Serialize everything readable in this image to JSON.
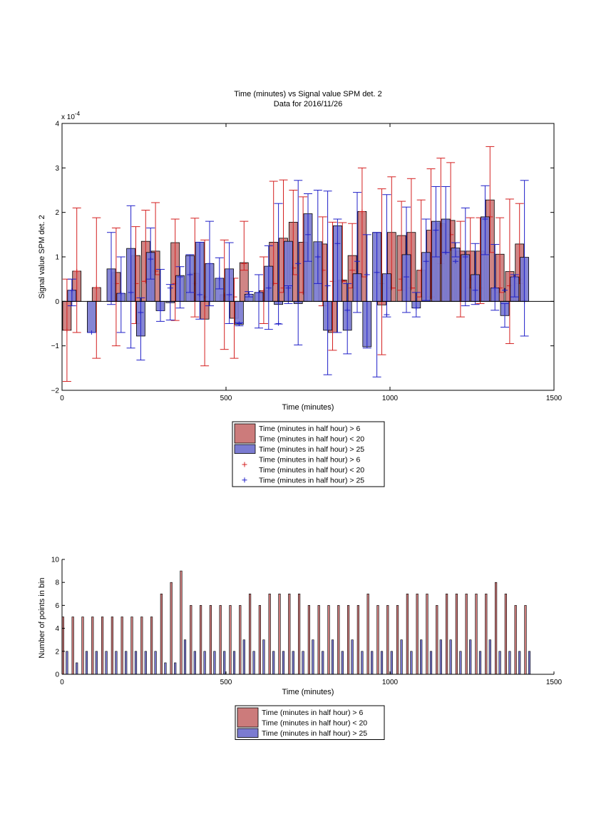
{
  "chart_data": [
    {
      "type": "bar",
      "title": "Time (minutes) vs Signal value SPM det. 2",
      "subtitle": "Data for 2016/11/26",
      "xlabel": "Time (minutes)",
      "ylabel": "Signal value SPM det. 2",
      "exponent_label": "x 10",
      "exponent_power": "-4",
      "xlim": [
        0,
        1500
      ],
      "ylim": [
        -2,
        4
      ],
      "xticks": [
        "0",
        "500",
        "1000",
        "1500"
      ],
      "yticks": [
        "−2",
        "−1",
        "0",
        "1",
        "2",
        "3",
        "4"
      ],
      "legend_placement": "below",
      "legend": [
        {
          "kind": "patch",
          "color": "#cc7b7b",
          "lines": [
            "Time (minutes in half hour) > 6",
            "Time (minutes in half hour) < 20"
          ]
        },
        {
          "kind": "patch",
          "color": "#7b7bd1",
          "lines": [
            "Time (minutes in half hour) > 25"
          ]
        },
        {
          "kind": "marker",
          "color": "#d42020",
          "lines": [
            "Time (minutes in half hour) > 6",
            "Time (minutes in half hour) < 20"
          ]
        },
        {
          "kind": "marker",
          "color": "#2020c8",
          "lines": [
            "Time (minutes in half hour) > 25"
          ]
        }
      ],
      "series": [
        {
          "color": "#cc7b7b",
          "errcolor": "#d42020",
          "x": [
            15,
            45,
            105,
            165,
            225,
            255,
            285,
            345,
            405,
            435,
            495,
            525,
            555,
            615,
            645,
            675,
            705,
            735,
            795,
            825,
            855,
            885,
            915,
            975,
            1005,
            1035,
            1065,
            1095,
            1125,
            1155,
            1185,
            1215,
            1245,
            1275,
            1305,
            1335,
            1365,
            1395
          ],
          "values": [
            -0.65,
            0.68,
            0.31,
            0.65,
            1.03,
            1.35,
            1.13,
            1.32,
            0.63,
            -0.4,
            0.15,
            -0.38,
            0.87,
            0.24,
            1.33,
            1.42,
            1.78,
            1.33,
            1.29,
            -0.7,
            0.48,
            1.03,
            2.02,
            -0.08,
            1.55,
            1.48,
            1.55,
            0.7,
            1.6,
            1.75,
            1.82,
            1.13,
            1.13,
            1.13,
            2.28,
            1.06,
            0.67,
            1.29
          ],
          "err_low": [
            -1.8,
            -0.7,
            -1.28,
            -1.0,
            -0.5,
            0.45,
            0.6,
            -0.43,
            -0.35,
            -1.45,
            -1.08,
            -1.28,
            0.7,
            -0.5,
            0.4,
            0.2,
            0.6,
            0.2,
            -0.1,
            -1.1,
            0.45,
            0.3,
            0.55,
            -1.2,
            0.3,
            0.25,
            0.3,
            0.1,
            0.1,
            0.85,
            1.15,
            -0.35,
            0.3,
            -0.05,
            1.1,
            0.2,
            -0.95,
            0.4
          ],
          "err_high": [
            0.5,
            2.1,
            1.88,
            1.65,
            1.68,
            2.05,
            2.22,
            1.85,
            1.87,
            1.38,
            1.38,
            0.52,
            1.8,
            1.0,
            2.7,
            2.73,
            2.5,
            2.35,
            1.9,
            1.78,
            1.77,
            1.75,
            3.0,
            2.53,
            2.8,
            2.25,
            2.76,
            2.28,
            2.98,
            3.22,
            3.12,
            1.8,
            1.88,
            1.88,
            3.48,
            1.88,
            2.3,
            2.2
          ],
          "means": [
            -0.65,
            0.68,
            0.31,
            0.4,
            0.4,
            0.45,
            0.68,
            0.4,
            0.4,
            0.1,
            0.15,
            0.1,
            0.85,
            0.24,
            0.4,
            0.3,
            0.75,
            0.2,
            0.7,
            0.45,
            0.46,
            0.7,
            2.02,
            0.4,
            0.3,
            0.5,
            0.3,
            0.7,
            0.1,
            1.7,
            1.5,
            1.0,
            0.5,
            0.3,
            1.9,
            0.3,
            0.35,
            0.5
          ]
        },
        {
          "color": "#7b7bd1",
          "errcolor": "#2020c8",
          "x": [
            30,
            90,
            150,
            180,
            210,
            240,
            270,
            300,
            330,
            360,
            390,
            420,
            450,
            480,
            510,
            540,
            570,
            600,
            630,
            660,
            690,
            720,
            750,
            780,
            810,
            840,
            870,
            900,
            930,
            960,
            990,
            1050,
            1080,
            1110,
            1140,
            1170,
            1200,
            1230,
            1260,
            1290,
            1320,
            1350,
            1380,
            1410
          ],
          "values": [
            0.25,
            -0.7,
            0.73,
            0.18,
            1.19,
            -0.78,
            1.1,
            -0.21,
            -0.03,
            0.58,
            1.03,
            1.33,
            0.85,
            0.52,
            0.73,
            -0.52,
            0.16,
            0.2,
            0.79,
            -0.07,
            1.35,
            -0.05,
            1.97,
            1.34,
            -0.65,
            1.7,
            -0.65,
            0.62,
            -1.02,
            1.55,
            0.62,
            1.05,
            -0.15,
            1.1,
            1.8,
            1.85,
            1.2,
            1.05,
            0.6,
            1.9,
            0.3,
            -0.32,
            0.55,
            0.99
          ],
          "err_low": [
            -0.1,
            -0.7,
            -0.07,
            -0.7,
            -1.05,
            -1.32,
            0.5,
            -0.45,
            -0.42,
            -0.15,
            0.2,
            -0.4,
            -0.1,
            0.28,
            -0.5,
            -0.55,
            0.1,
            -0.6,
            -0.63,
            -0.51,
            -0.05,
            -0.98,
            0.9,
            0.4,
            -1.65,
            -0.7,
            -1.18,
            -0.25,
            -1.05,
            -1.7,
            -0.35,
            -0.25,
            -0.35,
            0.02,
            1.0,
            1.1,
            1.0,
            -0.1,
            -0.07,
            1.05,
            -0.2,
            -0.58,
            0.1,
            -0.78
          ],
          "err_high": [
            0.5,
            -0.7,
            1.55,
            1.0,
            2.15,
            0.08,
            1.65,
            0.72,
            0.38,
            0.78,
            1.05,
            1.33,
            1.8,
            0.98,
            1.32,
            -0.48,
            0.22,
            0.6,
            1.25,
            2.2,
            0.35,
            2.72,
            2.42,
            2.5,
            2.48,
            1.85,
            0.4,
            2.45,
            1.5,
            1.55,
            2.4,
            2.12,
            0.2,
            1.85,
            2.58,
            2.58,
            1.32,
            2.1,
            1.3,
            2.6,
            1.28,
            -0.05,
            0.6,
            2.72
          ],
          "means": [
            0.25,
            -0.7,
            0.0,
            0.18,
            0.2,
            -0.25,
            0.95,
            -0.21,
            0.3,
            0.55,
            0.6,
            0.15,
            0.85,
            0.52,
            0.15,
            -0.5,
            0.16,
            0.2,
            0.3,
            -0.5,
            0.3,
            0.85,
            1.5,
            1.0,
            0.35,
            1.3,
            -0.2,
            0.9,
            0.6,
            0.65,
            -0.3,
            0.55,
            -0.15,
            0.9,
            1.6,
            1.1,
            0.9,
            1.0,
            0.25,
            1.85,
            0.3,
            0.25,
            0.55,
            0.0
          ]
        }
      ]
    },
    {
      "type": "bar",
      "xlabel": "Time (minutes)",
      "ylabel": "Number of points in bin",
      "xlim": [
        0,
        1500
      ],
      "ylim": [
        0,
        10
      ],
      "xticks": [
        "0",
        "500",
        "1000",
        "1500"
      ],
      "yticks": [
        "0",
        "2",
        "4",
        "6",
        "8",
        "10"
      ],
      "legend_placement": "below",
      "legend": [
        {
          "kind": "patch",
          "color": "#cc7b7b",
          "lines": [
            "Time (minutes in half hour) > 6",
            "Time (minutes in half hour) < 20"
          ]
        },
        {
          "kind": "patch",
          "color": "#7b7bd1",
          "lines": [
            "Time (minutes in half hour) > 25"
          ]
        }
      ],
      "series": [
        {
          "color": "#cc7b7b",
          "x": [
            3,
            33,
            63,
            93,
            123,
            153,
            183,
            213,
            243,
            273,
            303,
            333,
            363,
            393,
            423,
            453,
            483,
            513,
            543,
            573,
            603,
            633,
            663,
            693,
            723,
            753,
            783,
            813,
            843,
            873,
            903,
            933,
            963,
            993,
            1023,
            1053,
            1083,
            1113,
            1143,
            1173,
            1203,
            1233,
            1263,
            1293,
            1323,
            1353,
            1383,
            1413
          ],
          "values": [
            5,
            5,
            5,
            5,
            5,
            5,
            5,
            5,
            5,
            5,
            7,
            8,
            9,
            6,
            6,
            6,
            6,
            6,
            6,
            7,
            6,
            7,
            7,
            7,
            7,
            6,
            6,
            6,
            6,
            6,
            6,
            7,
            6,
            6,
            6,
            7,
            7,
            7,
            6,
            7,
            7,
            7,
            7,
            7,
            8,
            7,
            6,
            6
          ]
        },
        {
          "color": "#7b7bd1",
          "x": [
            15,
            45,
            75,
            105,
            135,
            165,
            195,
            225,
            255,
            285,
            315,
            345,
            375,
            405,
            435,
            465,
            495,
            525,
            555,
            585,
            615,
            645,
            675,
            705,
            735,
            765,
            795,
            825,
            855,
            885,
            915,
            945,
            975,
            1005,
            1035,
            1065,
            1095,
            1125,
            1155,
            1185,
            1215,
            1245,
            1275,
            1305,
            1335,
            1365,
            1395,
            1425
          ],
          "values": [
            2,
            1,
            2,
            2,
            2,
            2,
            2,
            2,
            2,
            2,
            1,
            1,
            3,
            2,
            2,
            2,
            2,
            2,
            3,
            2,
            3,
            2,
            2,
            2,
            2,
            3,
            2,
            3,
            2,
            3,
            2,
            2,
            2,
            2,
            3,
            2,
            3,
            2,
            3,
            3,
            2,
            3,
            2,
            3,
            2,
            2,
            2,
            2
          ]
        }
      ]
    }
  ]
}
